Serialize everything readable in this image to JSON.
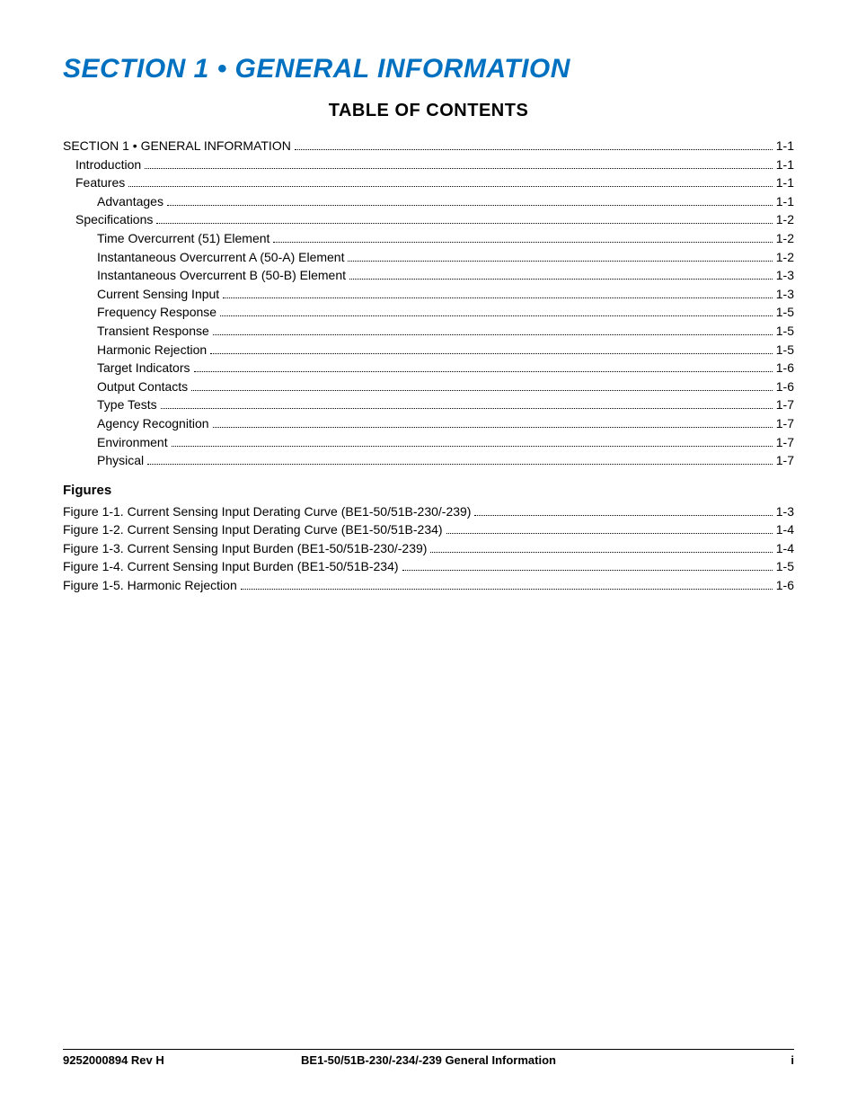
{
  "title": {
    "section_title": "SECTION 1 • GENERAL INFORMATION",
    "color": "#0070c0",
    "fontsize": 30
  },
  "toc_heading": "TABLE OF CONTENTS",
  "toc": [
    {
      "label": "SECTION 1 • GENERAL INFORMATION",
      "page": "1-1",
      "indent": 0
    },
    {
      "label": "Introduction",
      "page": "1-1",
      "indent": 1
    },
    {
      "label": "Features",
      "page": "1-1",
      "indent": 1
    },
    {
      "label": "Advantages",
      "page": "1-1",
      "indent": 2
    },
    {
      "label": "Specifications",
      "page": "1-2",
      "indent": 1
    },
    {
      "label": "Time Overcurrent (51) Element",
      "page": "1-2",
      "indent": 2
    },
    {
      "label": "Instantaneous Overcurrent A (50-A) Element",
      "page": "1-2",
      "indent": 2
    },
    {
      "label": "Instantaneous Overcurrent B (50-B) Element",
      "page": "1-3",
      "indent": 2
    },
    {
      "label": "Current Sensing Input",
      "page": "1-3",
      "indent": 2
    },
    {
      "label": "Frequency Response",
      "page": "1-5",
      "indent": 2
    },
    {
      "label": "Transient Response",
      "page": "1-5",
      "indent": 2
    },
    {
      "label": "Harmonic Rejection",
      "page": "1-5",
      "indent": 2
    },
    {
      "label": "Target Indicators",
      "page": "1-6",
      "indent": 2
    },
    {
      "label": "Output Contacts",
      "page": "1-6",
      "indent": 2
    },
    {
      "label": "Type Tests",
      "page": "1-7",
      "indent": 2
    },
    {
      "label": "Agency Recognition",
      "page": "1-7",
      "indent": 2
    },
    {
      "label": "Environment",
      "page": "1-7",
      "indent": 2
    },
    {
      "label": "Physical",
      "page": "1-7",
      "indent": 2
    }
  ],
  "figures_heading": "Figures",
  "figures": [
    {
      "label": "Figure 1-1. Current Sensing Input Derating Curve (BE1-50/51B-230/-239)",
      "page": "1-3",
      "indent": 0
    },
    {
      "label": "Figure 1-2. Current Sensing Input Derating Curve (BE1-50/51B-234)",
      "page": "1-4",
      "indent": 0
    },
    {
      "label": "Figure 1-3. Current Sensing Input Burden (BE1-50/51B-230/-239)",
      "page": "1-4",
      "indent": 0
    },
    {
      "label": "Figure 1-4. Current Sensing Input Burden (BE1-50/51B-234)",
      "page": "1-5",
      "indent": 0
    },
    {
      "label": "Figure 1-5. Harmonic Rejection",
      "page": "1-6",
      "indent": 0
    }
  ],
  "footer": {
    "left": "9252000894 Rev H",
    "center": "BE1-50/51B-230/-234/-239 General Information",
    "right": "i"
  }
}
